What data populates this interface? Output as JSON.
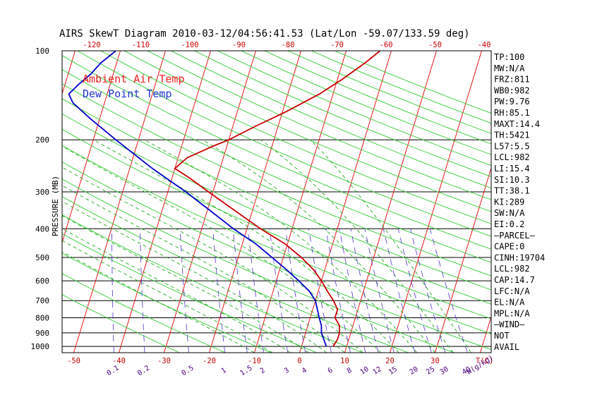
{
  "chart_data": {
    "type": "line",
    "title": "AIRS SkewT Diagram 2010-03-12/04:56:41.53 (Lat/Lon -59.07/133.59 deg)",
    "ylabel": "PRESSURE (MB)",
    "xlabel": "T(C)",
    "mixing_ratio_label": "W(g/kg)",
    "y_scale": "log",
    "ylim": [
      1050,
      100
    ],
    "xlim": [
      -53,
      42
    ],
    "isobar_ticks": [
      100,
      200,
      300,
      400,
      500,
      600,
      700,
      800,
      900,
      1000
    ],
    "bottom_temp_ticks": [
      -50,
      -40,
      -30,
      -20,
      -10,
      0,
      10,
      20,
      30
    ],
    "top_temp_ticks": [
      -120,
      -110,
      -100,
      -90,
      -80,
      -70,
      -60,
      -50,
      -40
    ],
    "mixing_ratio_ticks": [
      "0.1",
      "0.2",
      "0.5",
      "1",
      "1.5",
      "2",
      "3",
      "4",
      "6",
      "8",
      "10",
      "12",
      "15",
      "20",
      "25",
      "30",
      "40"
    ],
    "legend": [
      {
        "name": "Ambient Air Temp",
        "color": "#ee2222"
      },
      {
        "name": "Dew Point Temp",
        "color": "#2233cc"
      }
    ],
    "series": [
      {
        "name": "Ambient Air Temp",
        "color": "#cc0000",
        "points": [
          [
            1000,
            7
          ],
          [
            950,
            7.5
          ],
          [
            900,
            7.5
          ],
          [
            850,
            7
          ],
          [
            800,
            5.5
          ],
          [
            750,
            5.5
          ],
          [
            700,
            4
          ],
          [
            650,
            2
          ],
          [
            600,
            0
          ],
          [
            550,
            -2.5
          ],
          [
            500,
            -6
          ],
          [
            450,
            -10.5
          ],
          [
            400,
            -17
          ],
          [
            350,
            -23.5
          ],
          [
            300,
            -31
          ],
          [
            270,
            -36
          ],
          [
            250,
            -40
          ],
          [
            230,
            -38
          ],
          [
            210,
            -33
          ],
          [
            200,
            -30
          ],
          [
            180,
            -25
          ],
          [
            160,
            -19
          ],
          [
            140,
            -13
          ],
          [
            125,
            -9
          ],
          [
            110,
            -5
          ],
          [
            100,
            -2.5
          ]
        ]
      },
      {
        "name": "Dew Point Temp",
        "color": "#0000cc",
        "points": [
          [
            1000,
            5.5
          ],
          [
            900,
            3.5
          ],
          [
            850,
            3
          ],
          [
            800,
            2
          ],
          [
            700,
            0
          ],
          [
            650,
            -2
          ],
          [
            600,
            -5
          ],
          [
            550,
            -8.5
          ],
          [
            500,
            -12.5
          ],
          [
            450,
            -17
          ],
          [
            400,
            -23
          ],
          [
            350,
            -29
          ],
          [
            300,
            -36
          ],
          [
            250,
            -45
          ],
          [
            200,
            -55
          ],
          [
            170,
            -62
          ],
          [
            150,
            -67
          ],
          [
            140,
            -68.5
          ],
          [
            130,
            -67
          ],
          [
            120,
            -65
          ],
          [
            110,
            -63.5
          ],
          [
            100,
            -61
          ]
        ]
      }
    ]
  },
  "indices": [
    "TP:100",
    "MW:N/A",
    "FRZ:811",
    "WB0:982",
    "PW:9.76",
    "RH:85.1",
    "MAXT:14.4",
    "TH:5421",
    "L57:5.5",
    "LCL:982",
    "LI:15.4",
    "SI:10.3",
    "TT:38.1",
    "KI:289",
    "SW:N/A",
    "EI:0.2",
    "–PARCEL–",
    "CAPE:0",
    "CINH:19704",
    "LCL:982",
    "CAP:14.7",
    "LFC:N/A",
    "EL:N/A",
    "MPL:N/A",
    "–WIND–",
    "NOT",
    "AVAIL"
  ],
  "colors": {
    "isotherm": "#e60000",
    "dry_adiabat": "#33cc33",
    "moist_adiabat": "#22aa22",
    "mixing_ratio": "#5533cc",
    "isobar": "#000000"
  }
}
